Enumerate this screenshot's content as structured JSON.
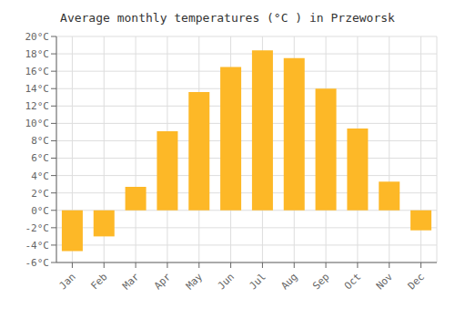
{
  "chart_data": {
    "type": "bar",
    "title": "Average monthly temperatures (°C ) in Przeworsk",
    "categories": [
      "Jan",
      "Feb",
      "Mar",
      "Apr",
      "May",
      "Jun",
      "Jul",
      "Aug",
      "Sep",
      "Oct",
      "Nov",
      "Dec"
    ],
    "values": [
      -4.7,
      -3.0,
      2.7,
      9.1,
      13.6,
      16.5,
      18.4,
      17.5,
      14.0,
      9.4,
      3.3,
      -2.3
    ],
    "color": "#FDB827",
    "ylim": [
      -6,
      20
    ],
    "yticks": [
      {
        "value": -6,
        "label": "-6°C"
      },
      {
        "value": -4,
        "label": "-4°C"
      },
      {
        "value": -2,
        "label": "-2°C"
      },
      {
        "value": 0,
        "label": "0°C"
      },
      {
        "value": 2,
        "label": "2°C"
      },
      {
        "value": 4,
        "label": "4°C"
      },
      {
        "value": 6,
        "label": "6°C"
      },
      {
        "value": 8,
        "label": "8°C"
      },
      {
        "value": 10,
        "label": "10°C"
      },
      {
        "value": 12,
        "label": "12°C"
      },
      {
        "value": 14,
        "label": "14°C"
      },
      {
        "value": 16,
        "label": "16°C"
      },
      {
        "value": 18,
        "label": "18°C"
      },
      {
        "value": 20,
        "label": "20°C"
      }
    ],
    "grid": true
  }
}
